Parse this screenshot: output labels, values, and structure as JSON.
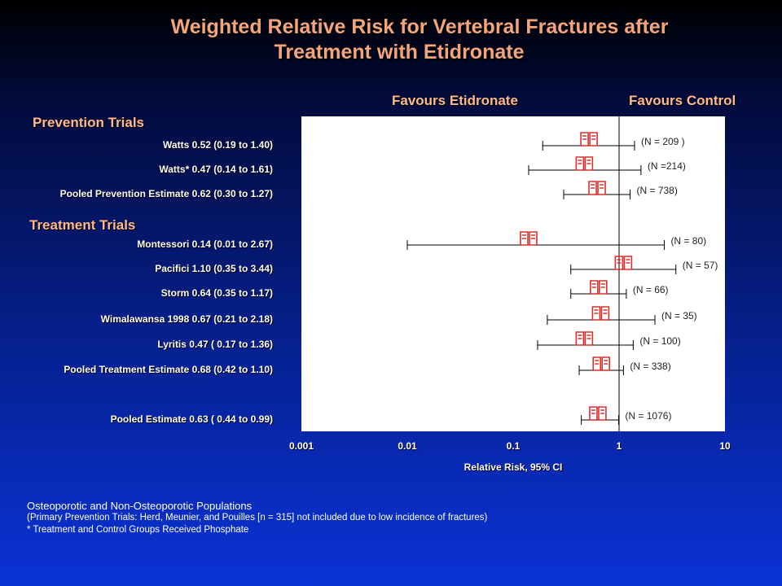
{
  "title_line1": "Weighted Relative Risk for Vertebral Fractures after",
  "title_line2": "Treatment with Etidronate",
  "favours_left": "Favours Etidronate",
  "favours_right": "Favours Control",
  "section_prevention": "Prevention Trials",
  "section_treatment": "Treatment Trials",
  "notes": {
    "line1": "Osteoporotic and Non-Osteoporotic Populations",
    "line2": "(Primary Prevention Trials: Herd, Meunier, and Pouilles [n = 315] not included due to low incidence of fractures)",
    "line3": "* Treatment and Control Groups Received Phosphate"
  },
  "colors": {
    "title": "#f4a57a",
    "headings": "#ffb98c",
    "plot_bg": "#ffffff",
    "marker": "#d9302c",
    "lines": "#000000"
  },
  "chart_data": {
    "type": "scatter",
    "subtype": "forest plot",
    "xlabel": "Relative Risk, 95% CI",
    "xscale": "log",
    "xlim": [
      0.001,
      10
    ],
    "xticks": [
      "0.001",
      "0.01",
      "0.1",
      "1",
      "10"
    ],
    "reference_line": 1,
    "marker_glyph": "🕮",
    "rows": [
      {
        "label": "Watts 0.52 (0.19 to 1.40)",
        "rr": 0.52,
        "lo": 0.19,
        "hi": 1.4,
        "n_label": "(N = 209  )",
        "group": "Prevention Trials"
      },
      {
        "label": "Watts* 0.47 (0.14 to 1.61)",
        "rr": 0.47,
        "lo": 0.14,
        "hi": 1.61,
        "n_label": "(N =214)",
        "group": "Prevention Trials"
      },
      {
        "label": "Pooled Prevention Estimate 0.62 (0.30 to 1.27)",
        "rr": 0.62,
        "lo": 0.3,
        "hi": 1.27,
        "n_label": "(N = 738)",
        "group": "Prevention Trials"
      },
      {
        "label": "Montessori 0.14 (0.01 to 2.67)",
        "rr": 0.14,
        "lo": 0.01,
        "hi": 2.67,
        "n_label": "(N = 80)",
        "group": "Treatment Trials"
      },
      {
        "label": "Pacifici 1.10 (0.35 to 3.44)",
        "rr": 1.1,
        "lo": 0.35,
        "hi": 3.44,
        "n_label": "(N = 57)",
        "group": "Treatment Trials"
      },
      {
        "label": "Storm 0.64 (0.35 to 1.17)",
        "rr": 0.64,
        "lo": 0.35,
        "hi": 1.17,
        "n_label": "(N = 66)",
        "group": "Treatment Trials"
      },
      {
        "label": "Wimalawansa 1998  0.67 (0.21 to 2.18)",
        "rr": 0.67,
        "lo": 0.21,
        "hi": 2.18,
        "n_label": "(N = 35)",
        "group": "Treatment Trials"
      },
      {
        "label": "Lyritis 0.47 ( 0.17 to 1.36)",
        "rr": 0.47,
        "lo": 0.17,
        "hi": 1.36,
        "n_label": "(N = 100)",
        "group": "Treatment Trials"
      },
      {
        "label": "Pooled Treatment Estimate 0.68 (0.42 to 1.10)",
        "rr": 0.68,
        "lo": 0.42,
        "hi": 1.1,
        "n_label": "(N = 338)",
        "group": "Treatment Trials"
      },
      {
        "label": "Pooled Estimate 0.63 ( 0.44 to 0.99)",
        "rr": 0.63,
        "lo": 0.44,
        "hi": 0.99,
        "n_label": "(N = 1076)",
        "group": "Overall"
      }
    ]
  }
}
